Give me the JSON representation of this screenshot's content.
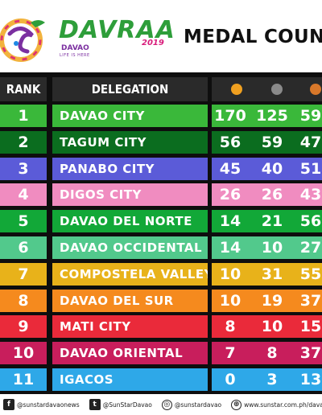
{
  "header": {
    "brand": "DAVRAA",
    "brand_year": "2019",
    "brand_sub": "DAVAO",
    "brand_tag": "LIFE IS HERE",
    "title": "MEDAL COUNT"
  },
  "columns": {
    "rank": "RANK",
    "delegation": "DELEGATION",
    "medal_colors": {
      "gold": "#f0a020",
      "silver": "#8a8a8a",
      "bronze": "#d8782a"
    }
  },
  "rows": [
    {
      "rank": "1",
      "delegation": "DAVAO CITY",
      "gold": "170",
      "silver": "125",
      "bronze": "59",
      "color": "#3ab83a",
      "dark": "#2a9a2a"
    },
    {
      "rank": "2",
      "delegation": "TAGUM CITY",
      "gold": "56",
      "silver": "59",
      "bronze": "47",
      "color": "#0b6d1f",
      "dark": "#0a5c1a"
    },
    {
      "rank": "3",
      "delegation": "PANABO CITY",
      "gold": "45",
      "silver": "40",
      "bronze": "51",
      "color": "#5b5bd8",
      "dark": "#4a4ac4"
    },
    {
      "rank": "4",
      "delegation": "DIGOS CITY",
      "gold": "26",
      "silver": "26",
      "bronze": "43",
      "color": "#f08cc0",
      "dark": "#e07ab0"
    },
    {
      "rank": "5",
      "delegation": "DAVAO DEL NORTE",
      "gold": "14",
      "silver": "21",
      "bronze": "56",
      "color": "#12a838",
      "dark": "#0e962f"
    },
    {
      "rank": "6",
      "delegation": "DAVAO OCCIDENTAL",
      "gold": "14",
      "silver": "10",
      "bronze": "27",
      "color": "#52c98c",
      "dark": "#44b87c"
    },
    {
      "rank": "7",
      "delegation": "COMPOSTELA VALLEY",
      "gold": "10",
      "silver": "31",
      "bronze": "55",
      "color": "#e8b21a",
      "dark": "#d6a210"
    },
    {
      "rank": "8",
      "delegation": "DAVAO DEL SUR",
      "gold": "10",
      "silver": "19",
      "bronze": "37",
      "color": "#f58a1e",
      "dark": "#e67a12"
    },
    {
      "rank": "9",
      "delegation": "MATI CITY",
      "gold": "8",
      "silver": "10",
      "bronze": "15",
      "color": "#ea2a3a",
      "dark": "#d81e2e"
    },
    {
      "rank": "10",
      "delegation": "DAVAO ORIENTAL",
      "gold": "7",
      "silver": "8",
      "bronze": "37",
      "color": "#c81e5c",
      "dark": "#b4164e"
    },
    {
      "rank": "11",
      "delegation": "IGACOS",
      "gold": "0",
      "silver": "3",
      "bronze": "13",
      "color": "#2ea8e8",
      "dark": "#1e96d6"
    }
  ],
  "footer": [
    {
      "icon": "facebook-icon",
      "glyph": "f",
      "text": "@sunstardavaonews"
    },
    {
      "icon": "twitter-icon",
      "glyph": "t",
      "text": "@SunStarDavao"
    },
    {
      "icon": "instagram-icon",
      "glyph": "◎",
      "text": "@sunstardavao"
    },
    {
      "icon": "globe-icon",
      "glyph": "⊕",
      "text": "www.sunstar.com.ph/davao"
    }
  ]
}
